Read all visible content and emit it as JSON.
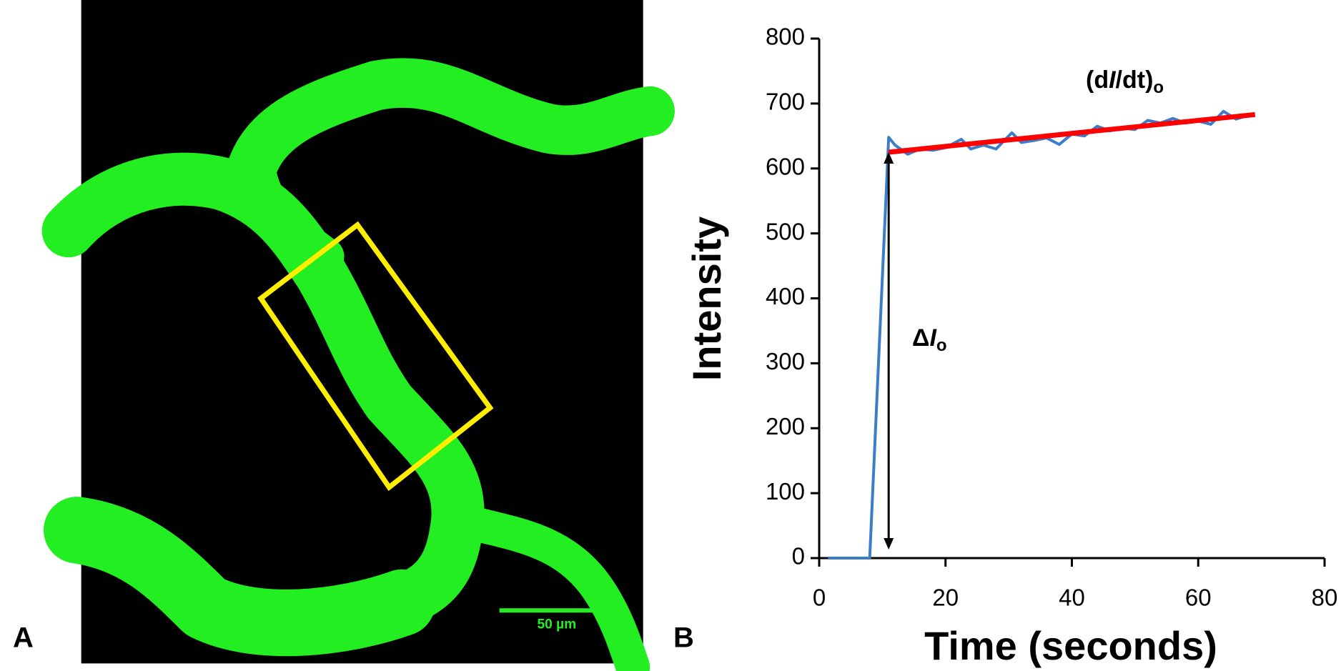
{
  "panels": [
    "A",
    "B"
  ],
  "scale_bar": "50 µm",
  "chart_data": {
    "type": "line",
    "xlabel": "Time (seconds)",
    "ylabel": "Intensity",
    "xlim": [
      0,
      80
    ],
    "xticks": [
      0,
      20,
      40,
      60,
      80
    ],
    "ylim": [
      0,
      800
    ],
    "yticks": [
      0,
      100,
      200,
      300,
      400,
      500,
      600,
      700,
      800
    ],
    "annotations": [
      [
        "(d",
        "I",
        "/dt)",
        "o"
      ],
      [
        "Δ",
        "I",
        "o"
      ]
    ],
    "series": [
      {
        "color": "#3d7cc9",
        "x": [
          1.4,
          8,
          11,
          12,
          14,
          16,
          18,
          20,
          22.5,
          24,
          26,
          28,
          30.5,
          32,
          34,
          36,
          38,
          40,
          42,
          44,
          46,
          48,
          50,
          52,
          54,
          56,
          58,
          60,
          62,
          64,
          66,
          68
        ],
        "values": [
          0,
          0,
          648,
          636,
          622,
          630,
          628,
          632,
          645,
          630,
          636,
          630,
          655,
          640,
          643,
          647,
          637,
          653,
          650,
          665,
          658,
          662,
          660,
          674,
          670,
          677,
          670,
          673,
          668,
          688,
          676,
          682
        ]
      },
      {
        "color": "#ff0000",
        "x": [
          11,
          69
        ],
        "values": [
          625,
          683
        ]
      }
    ]
  }
}
